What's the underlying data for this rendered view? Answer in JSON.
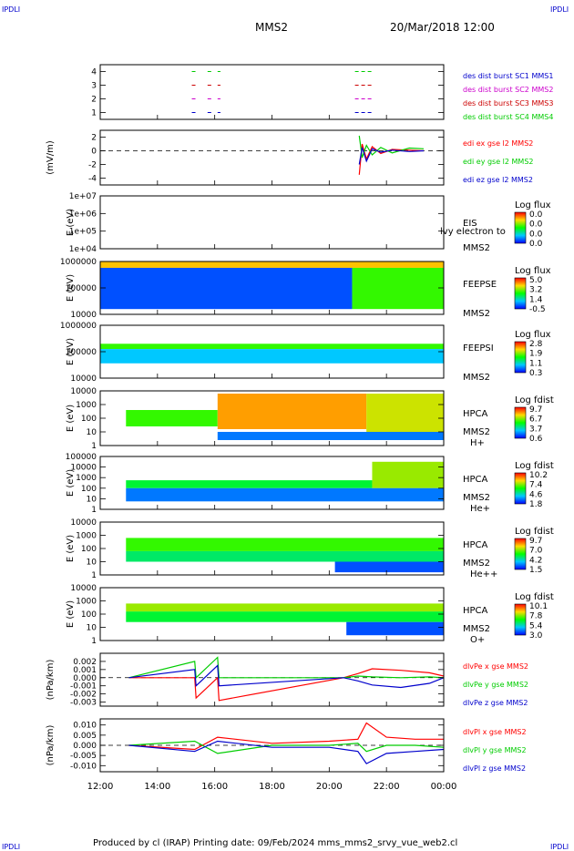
{
  "header": {
    "corner_label": "IPDLI",
    "mission": "MMS2",
    "datetime": "20/Mar/2018 12:00"
  },
  "footer": {
    "text": "Produced by cl (IRAP)   Printing date: 09/Feb/2024   mms_mms2_srvy_vue_web2.cl"
  },
  "colors": {
    "frame": "#000000",
    "series_red": "#ff0000",
    "series_green": "#00cc00",
    "series_blue": "#0000cc",
    "series_magenta": "#cc00cc",
    "spectro_low": "#0000ff",
    "spectro_mid": "#00ff00",
    "spectro_high": "#ff8800"
  },
  "x_axis": {
    "ticks": [
      "12:00",
      "14:00",
      "16:00",
      "18:00",
      "20:00",
      "22:00",
      "00:00"
    ],
    "start_hour": 12,
    "end_hour": 24
  },
  "chart_data": [
    {
      "type": "line",
      "id": "burst",
      "title": "",
      "ylabel": "",
      "ylim": [
        0.5,
        4.5
      ],
      "y_ticks": [
        "4",
        "3",
        "2",
        "1"
      ],
      "right_labels": [
        {
          "text": "des dist burst SC1 MMS1",
          "color": "#0000cc"
        },
        {
          "text": "des dist burst SC2 MMS2",
          "color": "#cc00cc"
        },
        {
          "text": "des dist burst SC3 MMS3",
          "color": "#cc0000"
        },
        {
          "text": "des dist burst SC4 MMS4",
          "color": "#00cc00"
        }
      ],
      "series": [
        {
          "level": 4,
          "color": "#00cc00",
          "intervals": [
            [
              15.2,
              15.35
            ],
            [
              15.75,
              15.95
            ],
            [
              16.1,
              16.2
            ],
            [
              20.9,
              21.5
            ]
          ]
        },
        {
          "level": 3,
          "color": "#cc0000",
          "intervals": [
            [
              15.2,
              15.35
            ],
            [
              15.75,
              15.95
            ],
            [
              16.1,
              16.2
            ],
            [
              20.9,
              21.5
            ]
          ]
        },
        {
          "level": 2,
          "color": "#cc00cc",
          "intervals": [
            [
              15.2,
              15.35
            ],
            [
              15.75,
              15.95
            ],
            [
              16.1,
              16.2
            ],
            [
              20.9,
              21.5
            ]
          ]
        },
        {
          "level": 1,
          "color": "#0000cc",
          "intervals": [
            [
              15.2,
              15.35
            ],
            [
              15.75,
              15.95
            ],
            [
              16.1,
              16.2
            ],
            [
              20.9,
              21.5
            ]
          ]
        }
      ]
    },
    {
      "type": "line",
      "id": "edi",
      "ylabel": "(mV/m)",
      "ylim": [
        -5,
        3
      ],
      "y_ticks": [
        "2",
        "0",
        "-2",
        "-4"
      ],
      "right_labels": [
        {
          "text": "edi ex gse l2 MMS2",
          "color": "#ff0000"
        },
        {
          "text": "edi ey gse l2 MMS2",
          "color": "#00cc00"
        },
        {
          "text": "edi ez gse l2 MMS2",
          "color": "#0000cc"
        }
      ],
      "series": [
        {
          "name": "edi ex gse l2 MMS2",
          "color": "#ff0000",
          "x": [
            21.05,
            21.15,
            21.3,
            21.5,
            21.8,
            22.2,
            22.8,
            23.3
          ],
          "y": [
            -3.5,
            1.0,
            -1.2,
            0.6,
            -0.4,
            0.2,
            0.1,
            0.0
          ]
        },
        {
          "name": "edi ey gse l2 MMS2",
          "color": "#00cc00",
          "x": [
            21.05,
            21.15,
            21.3,
            21.5,
            21.8,
            22.2,
            22.8,
            23.3
          ],
          "y": [
            2.2,
            -1.0,
            0.8,
            -0.6,
            0.5,
            -0.3,
            0.4,
            0.3
          ]
        },
        {
          "name": "edi ez gse l2 MMS2",
          "color": "#0000cc",
          "x": [
            21.05,
            21.15,
            21.3,
            21.5,
            21.8,
            22.2,
            22.8,
            23.3
          ],
          "y": [
            -2.0,
            0.5,
            -1.5,
            0.3,
            -0.2,
            0.1,
            -0.1,
            0.0
          ]
        }
      ]
    },
    {
      "type": "heatmap",
      "id": "eis",
      "ylabel": "E (eV)",
      "y_ticks": [
        "1e+07",
        "1e+06",
        "1e+05",
        "1e+04"
      ],
      "right_labels": [
        "EIS",
        "lvy electron to",
        "MMS2"
      ],
      "colorbar": {
        "title": "Log flux",
        "ticks": [
          "0.0",
          "0.0",
          "0.0",
          "0.0"
        ]
      },
      "bands": []
    },
    {
      "type": "heatmap",
      "id": "feeps_e",
      "ylabel": "E (eV)",
      "y_ticks": [
        "1000000",
        "100000",
        "10000"
      ],
      "right_labels": [
        "FEEPSE",
        "MMS2"
      ],
      "colorbar": {
        "title": "Log flux",
        "ticks": [
          "5.0",
          "3.2",
          "1.4",
          "-0.5"
        ]
      },
      "bands": [
        {
          "t0": 12.0,
          "t1": 24.0,
          "e0": 0.0,
          "e1": 0.12,
          "level": 0.78
        },
        {
          "t0": 12.0,
          "t1": 20.8,
          "e0": 0.12,
          "e1": 0.9,
          "level": 0.1
        },
        {
          "t0": 20.8,
          "t1": 24.0,
          "e0": 0.12,
          "e1": 0.9,
          "level": 0.55
        }
      ]
    },
    {
      "type": "heatmap",
      "id": "feeps_i",
      "ylabel": "E (eV)",
      "y_ticks": [
        "1000000",
        "100000",
        "10000"
      ],
      "right_labels": [
        "FEEPSI",
        "MMS2"
      ],
      "colorbar": {
        "title": "Log flux",
        "ticks": [
          "2.8",
          "1.9",
          "1.1",
          "0.3"
        ]
      },
      "bands": [
        {
          "t0": 12.0,
          "t1": 24.0,
          "e0": 0.35,
          "e1": 0.45,
          "level": 0.55
        },
        {
          "t0": 12.0,
          "t1": 24.0,
          "e0": 0.45,
          "e1": 0.72,
          "level": 0.25
        }
      ]
    },
    {
      "type": "heatmap",
      "id": "hpca_h",
      "ylabel": "E (eV)",
      "y_ticks": [
        "10000",
        "1000",
        "100",
        "10",
        "1"
      ],
      "right_labels": [
        "HPCA",
        "MMS2",
        "H+"
      ],
      "colorbar": {
        "title": "Log fdist",
        "ticks": [
          "9.7",
          "6.7",
          "3.7",
          "0.6"
        ]
      },
      "bands": [
        {
          "t0": 12.9,
          "t1": 16.1,
          "e0": 0.35,
          "e1": 0.65,
          "level": 0.55
        },
        {
          "t0": 16.1,
          "t1": 21.3,
          "e0": 0.05,
          "e1": 0.7,
          "level": 0.82
        },
        {
          "t0": 21.3,
          "t1": 24.0,
          "e0": 0.05,
          "e1": 0.75,
          "level": 0.7
        },
        {
          "t0": 16.1,
          "t1": 24.0,
          "e0": 0.75,
          "e1": 0.9,
          "level": 0.15
        }
      ]
    },
    {
      "type": "heatmap",
      "id": "hpca_he",
      "ylabel": "E (eV)",
      "y_ticks": [
        "100000",
        "10000",
        "1000",
        "100",
        "10",
        "1"
      ],
      "right_labels": [
        "HPCA",
        "MMS2",
        "He+"
      ],
      "colorbar": {
        "title": "Log fdist",
        "ticks": [
          "10.2",
          "7.4",
          "4.6",
          "1.8"
        ]
      },
      "bands": [
        {
          "t0": 12.9,
          "t1": 21.5,
          "e0": 0.45,
          "e1": 0.6,
          "level": 0.45
        },
        {
          "t0": 21.5,
          "t1": 24.0,
          "e0": 0.1,
          "e1": 0.6,
          "level": 0.65
        },
        {
          "t0": 12.9,
          "t1": 24.0,
          "e0": 0.6,
          "e1": 0.85,
          "level": 0.15
        }
      ]
    },
    {
      "type": "heatmap",
      "id": "hpca_hepp",
      "ylabel": "E (eV)",
      "y_ticks": [
        "10000",
        "1000",
        "100",
        "10",
        "1"
      ],
      "right_labels": [
        "HPCA",
        "MMS2",
        "He++"
      ],
      "colorbar": {
        "title": "Log fdist",
        "ticks": [
          "9.7",
          "7.0",
          "4.2",
          "1.5"
        ]
      },
      "bands": [
        {
          "t0": 12.9,
          "t1": 24.0,
          "e0": 0.55,
          "e1": 0.75,
          "level": 0.4
        },
        {
          "t0": 12.9,
          "t1": 24.0,
          "e0": 0.3,
          "e1": 0.55,
          "level": 0.55
        },
        {
          "t0": 20.2,
          "t1": 24.0,
          "e0": 0.75,
          "e1": 0.95,
          "level": 0.1
        }
      ]
    },
    {
      "type": "heatmap",
      "id": "hpca_o",
      "ylabel": "E (eV)",
      "y_ticks": [
        "10000",
        "1000",
        "100",
        "10",
        "1"
      ],
      "right_labels": [
        "HPCA",
        "MMS2",
        "O+"
      ],
      "colorbar": {
        "title": "Log fdist",
        "ticks": [
          "10.1",
          "7.8",
          "5.4",
          "3.0"
        ]
      },
      "bands": [
        {
          "t0": 12.9,
          "t1": 24.0,
          "e0": 0.45,
          "e1": 0.65,
          "level": 0.45
        },
        {
          "t0": 12.9,
          "t1": 24.0,
          "e0": 0.3,
          "e1": 0.45,
          "level": 0.65
        },
        {
          "t0": 20.6,
          "t1": 24.0,
          "e0": 0.65,
          "e1": 0.9,
          "level": 0.1
        }
      ]
    },
    {
      "type": "line",
      "id": "divpe",
      "ylabel": "(nPa/km)",
      "ylim": [
        -0.0035,
        0.003
      ],
      "y_ticks": [
        "0.002",
        "0.001",
        "0.000",
        "-0.001",
        "-0.002",
        "-0.003"
      ],
      "right_labels": [
        {
          "text": "dlvPe x gse MMS2",
          "color": "#ff0000"
        },
        {
          "text": "dlvPe y gse MMS2",
          "color": "#00cc00"
        },
        {
          "text": "dlvPe z gse MMS2",
          "color": "#0000cc"
        }
      ],
      "series": [
        {
          "name": "dlvPe x gse MMS2",
          "color": "#ff0000",
          "x": [
            13.0,
            15.3,
            15.35,
            16.1,
            16.15,
            20.5,
            21.0,
            21.5,
            22.5,
            23.5,
            24.0
          ],
          "y": [
            0.0,
            0.0,
            -0.0025,
            0.0,
            -0.0028,
            0.0,
            0.0005,
            0.0011,
            0.0009,
            0.0006,
            0.0002
          ]
        },
        {
          "name": "dlvPe y gse MMS2",
          "color": "#00cc00",
          "x": [
            13.0,
            15.3,
            15.35,
            16.1,
            16.15,
            20.5,
            21.0,
            21.5,
            22.5,
            23.5,
            24.0
          ],
          "y": [
            0.0,
            0.002,
            0.0,
            0.0025,
            0.0,
            0.0,
            0.0002,
            0.0001,
            0.0,
            0.0001,
            0.0
          ]
        },
        {
          "name": "dlvPe z gse MMS2",
          "color": "#0000cc",
          "x": [
            13.0,
            15.3,
            15.35,
            16.1,
            16.15,
            20.5,
            21.0,
            21.5,
            22.5,
            23.5,
            24.0
          ],
          "y": [
            0.0,
            0.001,
            -0.001,
            0.0015,
            -0.001,
            0.0,
            -0.0004,
            -0.0009,
            -0.0012,
            -0.0007,
            0.0
          ]
        }
      ]
    },
    {
      "type": "line",
      "id": "divpi",
      "ylabel": "(nPa/km)",
      "ylim": [
        -0.013,
        0.013
      ],
      "y_ticks": [
        "0.010",
        "0.005",
        "0.000",
        "-0.005",
        "-0.010"
      ],
      "right_labels": [
        {
          "text": "dlvPl x gse MMS2",
          "color": "#ff0000"
        },
        {
          "text": "dlvPl y gse MMS2",
          "color": "#00cc00"
        },
        {
          "text": "dlvPl z gse MMS2",
          "color": "#0000cc"
        }
      ],
      "series": [
        {
          "name": "dlvPl x gse MMS2",
          "color": "#ff0000",
          "x": [
            13.0,
            15.3,
            16.1,
            18.0,
            20.0,
            21.0,
            21.3,
            22.0,
            23.0,
            24.0
          ],
          "y": [
            0.0,
            -0.002,
            0.004,
            0.001,
            0.002,
            0.003,
            0.011,
            0.004,
            0.003,
            0.003
          ]
        },
        {
          "name": "dlvPl y gse MMS2",
          "color": "#00cc00",
          "x": [
            13.0,
            15.3,
            16.1,
            18.0,
            20.0,
            21.0,
            21.3,
            22.0,
            23.0,
            24.0
          ],
          "y": [
            0.0,
            0.002,
            -0.004,
            0.0,
            0.0,
            0.001,
            -0.003,
            0.0,
            0.0,
            -0.001
          ]
        },
        {
          "name": "dlvPl z gse MMS2",
          "color": "#0000cc",
          "x": [
            13.0,
            15.3,
            16.1,
            18.0,
            20.0,
            21.0,
            21.3,
            22.0,
            23.0,
            24.0
          ],
          "y": [
            0.0,
            -0.003,
            0.002,
            -0.001,
            -0.001,
            -0.003,
            -0.009,
            -0.004,
            -0.003,
            -0.002
          ]
        }
      ]
    }
  ]
}
